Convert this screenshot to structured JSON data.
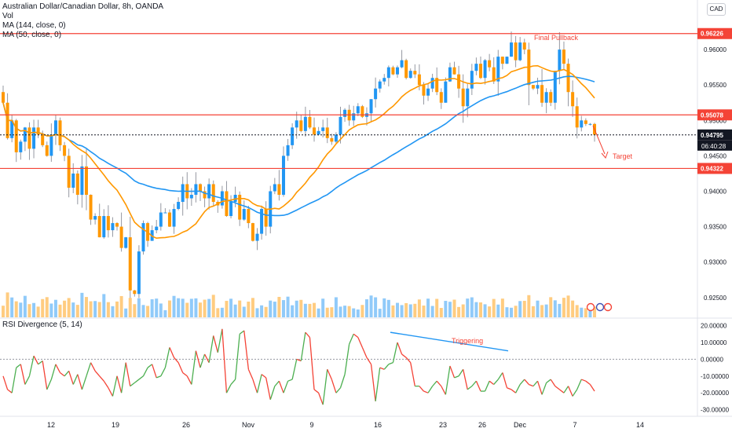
{
  "header": {
    "symbol_line": "Australian Dollar/Canadian Dollar, 8h, OANDA",
    "vol_label": "Vol",
    "ma144_label": "MA (144, close, 0)",
    "ma50_label": "MA (50, close, 0)",
    "currency_badge": "CAD"
  },
  "rsi_pane": {
    "title": "RSI Divergence (5, 14)"
  },
  "annotations": {
    "final_pullback": "Final Pullback",
    "target": "Target",
    "triggering": "Triggering"
  },
  "colors": {
    "bull_candle": "#2196f3",
    "bear_candle": "#ff9800",
    "ma144": "#2196f3",
    "ma50": "#ff9800",
    "level_line": "#f44336",
    "rsi_up": "#4caf50",
    "rsi_down": "#f44336",
    "divergence_line": "#2196f3"
  },
  "chart_data": [
    {
      "type": "candlestick",
      "title": "Australian Dollar/Canadian Dollar, 8h, OANDA",
      "y_axis_ticks": [
        "0.96000",
        "0.95500",
        "0.95000",
        "0.94500",
        "0.94000",
        "0.93500",
        "0.93000",
        "0.92500"
      ],
      "ylim": [
        0.9222,
        0.967
      ],
      "x_axis_ticks": [
        "12",
        "19",
        "26",
        "Nov",
        "9",
        "16",
        "23",
        "26",
        "Dec",
        "7",
        "14"
      ],
      "horizontal_levels": [
        {
          "value": 0.96226,
          "label": "0.96226"
        },
        {
          "value": 0.95078,
          "label": "0.95078"
        },
        {
          "value": 0.94322,
          "label": "0.94322"
        }
      ],
      "current_price": {
        "value": 0.94795,
        "label": "0.94795",
        "countdown": "06:40:28"
      },
      "closes": [
        0.9525,
        0.9475,
        0.95,
        0.9455,
        0.947,
        0.949,
        0.946,
        0.949,
        0.948,
        0.9465,
        0.945,
        0.948,
        0.95,
        0.9465,
        0.945,
        0.9405,
        0.9425,
        0.9395,
        0.9435,
        0.9395,
        0.936,
        0.9365,
        0.9335,
        0.9365,
        0.9345,
        0.9355,
        0.935,
        0.932,
        0.9335,
        0.926,
        0.9255,
        0.9315,
        0.9355,
        0.933,
        0.9345,
        0.935,
        0.937,
        0.937,
        0.935,
        0.9375,
        0.9385,
        0.941,
        0.939,
        0.9395,
        0.941,
        0.94,
        0.939,
        0.941,
        0.9385,
        0.938,
        0.94,
        0.9365,
        0.9385,
        0.9395,
        0.936,
        0.9375,
        0.9355,
        0.933,
        0.934,
        0.9375,
        0.935,
        0.94,
        0.941,
        0.9395,
        0.945,
        0.9465,
        0.949,
        0.95,
        0.9485,
        0.9505,
        0.949,
        0.948,
        0.9485,
        0.949,
        0.9475,
        0.947,
        0.948,
        0.9505,
        0.9515,
        0.95,
        0.951,
        0.952,
        0.9505,
        0.951,
        0.953,
        0.9545,
        0.9555,
        0.956,
        0.9575,
        0.9565,
        0.9575,
        0.9585,
        0.956,
        0.957,
        0.9565,
        0.955,
        0.9535,
        0.9545,
        0.956,
        0.954,
        0.9525,
        0.9555,
        0.9575,
        0.9565,
        0.9545,
        0.952,
        0.9545,
        0.957,
        0.958,
        0.956,
        0.9585,
        0.9575,
        0.9555,
        0.959,
        0.958,
        0.959,
        0.961,
        0.9585,
        0.961,
        0.96,
        0.955,
        0.9545,
        0.955,
        0.9525,
        0.954,
        0.9525,
        0.957,
        0.96,
        0.958,
        0.954,
        0.952,
        0.949,
        0.95,
        0.9495,
        0.9495,
        0.948
      ]
    },
    {
      "type": "line",
      "title": "RSI Divergence (5, 14)",
      "y_axis_ticks": [
        "20.00000",
        "10.00000",
        "0.00000",
        "-10.00000",
        "-20.00000",
        "-30.00000"
      ],
      "ylim": [
        -33,
        24
      ],
      "values": [
        -10,
        -18,
        -20,
        -5,
        -3,
        -15,
        -10,
        2,
        -3,
        -1,
        -18,
        -12,
        -3,
        -8,
        -10,
        -7,
        -15,
        -9,
        -18,
        -10,
        -2,
        -7,
        -10,
        -13,
        -17,
        -22,
        -10,
        -20,
        -2,
        -16,
        -14,
        -12,
        -10,
        -5,
        -3,
        -11,
        -10,
        -5,
        7,
        1,
        -2,
        -8,
        -10,
        -15,
        5,
        -5,
        3,
        -2,
        14,
        4,
        18,
        -20,
        -15,
        -12,
        15,
        17,
        -6,
        -12,
        -20,
        -9,
        -11,
        -24,
        -16,
        -13,
        -20,
        -13,
        -12,
        0,
        -1,
        16,
        13,
        -18,
        -20,
        -27,
        -6,
        -12,
        -20,
        -17,
        -9,
        9,
        15,
        13,
        7,
        1,
        -3,
        -25,
        -5,
        -6,
        -3,
        -2,
        10,
        3,
        1,
        -2,
        -16,
        -16,
        -19,
        -20,
        -16,
        -13,
        -16,
        -21,
        -4,
        -11,
        -10,
        -6,
        -18,
        -16,
        -13,
        -19,
        -19,
        -13,
        -15,
        -12,
        -8,
        -17,
        -18,
        -20,
        -15,
        -12,
        -15,
        -16,
        -13,
        -21,
        -14,
        -12,
        -16,
        -18,
        -20,
        -16,
        -22,
        -18,
        -12,
        -13,
        -15,
        -19
      ]
    }
  ]
}
